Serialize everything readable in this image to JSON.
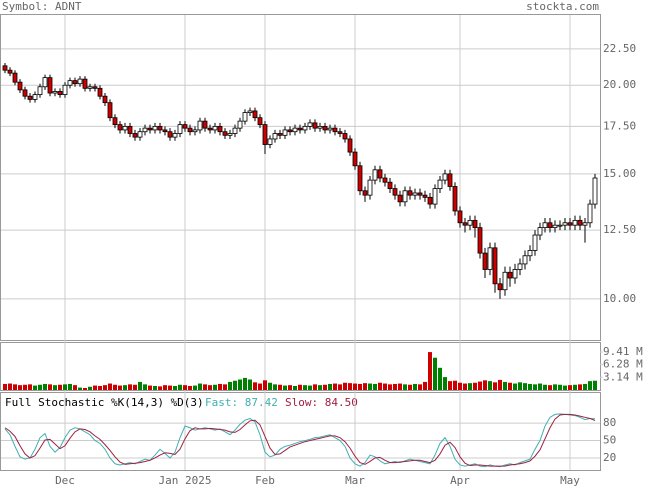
{
  "chart_data": {
    "type": "candlestick",
    "title": "Symbol: ADNT",
    "source": "stockta.com",
    "log_scale": true,
    "grid": true,
    "up_color": "#ffffff",
    "down_color": "#cc0000",
    "ylim": [
      8.75,
      25.2
    ],
    "yticks": [
      {
        "value": 22.5,
        "label": "22.50"
      },
      {
        "value": 20,
        "label": "20.00"
      },
      {
        "value": 17.5,
        "label": "17.50"
      },
      {
        "value": 15,
        "label": "15.00"
      },
      {
        "value": 12.5,
        "label": "12.50"
      },
      {
        "value": 10,
        "label": "10.00"
      }
    ],
    "xticks": [
      {
        "value": 12,
        "label": "Dec"
      },
      {
        "value": 36,
        "label": "Jan 2025"
      },
      {
        "value": 52,
        "label": "Feb"
      },
      {
        "value": 70,
        "label": "Mar"
      },
      {
        "value": 91,
        "label": "Apr"
      },
      {
        "value": 113,
        "label": "May"
      }
    ],
    "open": [
      21.3,
      21.0,
      20.8,
      20.2,
      19.7,
      19.3,
      19.1,
      19.4,
      19.9,
      20.5,
      19.5,
      19.6,
      19.4,
      20.0,
      20.3,
      20.1,
      20.4,
      19.8,
      19.9,
      19.8,
      19.3,
      18.9,
      18.0,
      17.6,
      17.3,
      17.5,
      17.1,
      16.9,
      17.2,
      17.4,
      17.3,
      17.5,
      17.3,
      17.2,
      16.9,
      17.1,
      17.6,
      17.4,
      17.2,
      17.3,
      17.8,
      17.4,
      17.3,
      17.5,
      17.2,
      17.0,
      17.1,
      17.4,
      17.8,
      18.3,
      18.4,
      18.0,
      17.6,
      16.5,
      16.8,
      17.1,
      17.0,
      17.3,
      17.2,
      17.4,
      17.3,
      17.5,
      17.7,
      17.4,
      17.5,
      17.3,
      17.4,
      17.2,
      17.1,
      16.8,
      16.1,
      15.4,
      14.2,
      14.0,
      14.7,
      15.2,
      14.8,
      14.6,
      14.3,
      14.0,
      13.7,
      14.2,
      14.0,
      14.1,
      14.0,
      13.9,
      13.6,
      14.3,
      14.7,
      15.0,
      14.4,
      13.3,
      12.8,
      12.7,
      12.9,
      12.6,
      11.6,
      11.0,
      11.8,
      10.5,
      10.3,
      10.9,
      10.7,
      11.0,
      11.2,
      11.5,
      11.7,
      12.3,
      12.6,
      12.8,
      12.6,
      12.7,
      12.7,
      12.8,
      12.7,
      12.9,
      12.7,
      12.8,
      13.6
    ],
    "high": [
      21.5,
      21.2,
      21.0,
      20.4,
      19.9,
      19.5,
      19.6,
      20.1,
      20.7,
      20.7,
      19.8,
      19.8,
      20.2,
      20.5,
      20.5,
      20.6,
      20.6,
      20.1,
      20.1,
      20.0,
      19.5,
      19.1,
      18.2,
      17.8,
      17.7,
      17.7,
      17.3,
      17.4,
      17.6,
      17.6,
      17.7,
      17.7,
      17.5,
      17.4,
      17.3,
      17.8,
      17.8,
      17.6,
      17.5,
      18.0,
      18.0,
      17.6,
      17.7,
      17.7,
      17.4,
      17.3,
      17.6,
      18.0,
      18.5,
      18.6,
      18.6,
      18.2,
      17.8,
      17.0,
      17.3,
      17.3,
      17.5,
      17.5,
      17.6,
      17.6,
      17.7,
      17.9,
      17.9,
      17.7,
      17.7,
      17.6,
      17.6,
      17.4,
      17.3,
      17.0,
      16.3,
      15.6,
      14.4,
      14.9,
      15.4,
      15.4,
      15.0,
      14.8,
      14.5,
      14.2,
      14.4,
      14.4,
      14.3,
      14.3,
      14.2,
      14.1,
      14.5,
      14.9,
      15.2,
      15.2,
      14.6,
      13.5,
      13.0,
      13.1,
      13.1,
      12.8,
      11.8,
      12.0,
      12.0,
      10.7,
      11.1,
      11.1,
      11.2,
      11.4,
      11.7,
      11.9,
      12.5,
      12.8,
      13.0,
      13.0,
      12.9,
      12.9,
      13.0,
      13.0,
      13.1,
      13.1,
      13.0,
      13.8,
      15.0
    ],
    "low": [
      20.8,
      20.6,
      20.0,
      19.5,
      19.1,
      18.9,
      18.9,
      19.2,
      19.7,
      19.3,
      19.3,
      19.2,
      19.2,
      19.8,
      19.9,
      19.9,
      19.6,
      19.6,
      19.6,
      19.1,
      18.7,
      17.8,
      17.4,
      17.1,
      17.1,
      16.9,
      16.7,
      16.7,
      17.0,
      17.1,
      17.1,
      17.1,
      17.0,
      16.7,
      16.7,
      16.9,
      17.2,
      17.0,
      17.0,
      17.1,
      17.2,
      17.1,
      17.1,
      17.0,
      16.8,
      16.8,
      16.9,
      17.2,
      17.6,
      18.1,
      17.8,
      17.4,
      16.0,
      16.3,
      16.6,
      16.8,
      16.8,
      17.0,
      17.0,
      17.1,
      17.1,
      17.3,
      17.2,
      17.2,
      17.1,
      17.1,
      17.0,
      16.9,
      16.6,
      15.9,
      15.2,
      14.0,
      13.7,
      13.8,
      14.5,
      14.6,
      14.4,
      14.1,
      13.8,
      13.5,
      13.5,
      13.8,
      13.8,
      13.8,
      13.7,
      13.4,
      13.4,
      14.1,
      14.5,
      14.2,
      13.1,
      12.6,
      12.4,
      12.5,
      12.2,
      11.4,
      10.7,
      10.8,
      10.2,
      10.0,
      10.1,
      10.4,
      10.5,
      10.8,
      11.0,
      11.3,
      11.5,
      12.1,
      12.4,
      12.4,
      12.4,
      12.5,
      12.5,
      12.5,
      12.5,
      12.5,
      12.0,
      12.6,
      13.4
    ],
    "close": [
      21.0,
      20.8,
      20.2,
      19.7,
      19.3,
      19.1,
      19.4,
      19.9,
      20.5,
      19.5,
      19.6,
      19.4,
      20.0,
      20.3,
      20.1,
      20.4,
      19.8,
      19.9,
      19.8,
      19.3,
      18.9,
      18.0,
      17.6,
      17.3,
      17.5,
      17.1,
      16.9,
      17.2,
      17.4,
      17.3,
      17.5,
      17.3,
      17.2,
      16.9,
      17.1,
      17.6,
      17.4,
      17.2,
      17.3,
      17.8,
      17.4,
      17.3,
      17.5,
      17.2,
      17.0,
      17.1,
      17.4,
      17.8,
      18.3,
      18.4,
      18.0,
      17.6,
      16.5,
      16.8,
      17.1,
      17.0,
      17.3,
      17.2,
      17.4,
      17.3,
      17.5,
      17.7,
      17.4,
      17.5,
      17.3,
      17.4,
      17.2,
      17.1,
      16.8,
      16.1,
      15.4,
      14.2,
      14.0,
      14.7,
      15.2,
      14.8,
      14.6,
      14.3,
      14.0,
      13.7,
      14.2,
      14.0,
      14.1,
      14.0,
      13.9,
      13.6,
      14.3,
      14.7,
      15.0,
      14.4,
      13.3,
      12.8,
      12.7,
      12.9,
      12.6,
      11.6,
      11.0,
      11.8,
      10.5,
      10.3,
      10.9,
      10.7,
      11.0,
      11.2,
      11.5,
      11.7,
      12.3,
      12.6,
      12.8,
      12.6,
      12.7,
      12.7,
      12.8,
      12.7,
      12.9,
      12.7,
      12.8,
      13.6,
      14.8
    ],
    "volume": {
      "up_color": "#008000",
      "down_color": "#cc0000",
      "ylim": [
        0,
        11.9
      ],
      "yticks": [
        {
          "value": 9.41,
          "label": "9.41 M"
        },
        {
          "value": 6.28,
          "label": "6.28 M"
        },
        {
          "value": 3.14,
          "label": "3.14 M"
        }
      ],
      "values": [
        1.5,
        1.6,
        1.4,
        1.2,
        1.3,
        1.4,
        1.1,
        1.3,
        1.5,
        1.4,
        1.2,
        1.3,
        1.4,
        1.5,
        1.2,
        0.6,
        0.5,
        0.8,
        1.1,
        1.0,
        1.2,
        1.6,
        1.3,
        1.1,
        1.2,
        1.4,
        1.3,
        2.0,
        1.4,
        1.1,
        1.0,
        0.9,
        1.2,
        1.1,
        1.0,
        1.3,
        1.2,
        1.0,
        1.1,
        1.6,
        1.4,
        1.2,
        1.3,
        1.5,
        1.4,
        2.0,
        2.3,
        2.6,
        3.0,
        2.6,
        1.9,
        1.6,
        2.4,
        1.8,
        1.4,
        1.3,
        1.1,
        1.2,
        1.0,
        1.3,
        1.2,
        1.1,
        1.4,
        1.2,
        1.3,
        1.5,
        1.6,
        1.4,
        1.8,
        1.7,
        1.6,
        1.5,
        1.7,
        1.6,
        1.5,
        1.8,
        1.6,
        1.4,
        1.5,
        1.6,
        1.4,
        1.3,
        1.5,
        1.4,
        2.0,
        9.4,
        8.0,
        5.5,
        3.2,
        2.2,
        2.3,
        1.8,
        1.6,
        1.7,
        1.8,
        2.1,
        2.4,
        2.2,
        1.9,
        2.5,
        2.0,
        1.8,
        1.6,
        1.9,
        1.7,
        1.5,
        1.4,
        1.6,
        1.3,
        1.2,
        1.4,
        1.3,
        1.1,
        1.2,
        1.3,
        1.4,
        1.5,
        2.2,
        2.3
      ]
    },
    "stochastic": {
      "label": "Full Stochastic %K(14,3) %D(3)",
      "fast_text": "Fast: 87.42",
      "slow_text": "Slow: 84.50",
      "ylim": [
        0,
        100
      ],
      "yticks": [
        80,
        50,
        20
      ],
      "series": [
        {
          "name": "%K",
          "color": "#40b0b0",
          "values": [
            70,
            60,
            40,
            22,
            18,
            20,
            35,
            55,
            62,
            40,
            30,
            38,
            55,
            68,
            72,
            70,
            65,
            60,
            50,
            45,
            35,
            20,
            10,
            8,
            10,
            12,
            10,
            14,
            18,
            16,
            25,
            35,
            28,
            20,
            30,
            55,
            75,
            72,
            68,
            70,
            72,
            70,
            68,
            70,
            65,
            60,
            68,
            78,
            85,
            88,
            82,
            60,
            30,
            22,
            25,
            35,
            40,
            42,
            45,
            48,
            50,
            52,
            55,
            56,
            58,
            60,
            55,
            50,
            40,
            20,
            10,
            6,
            12,
            25,
            22,
            15,
            10,
            12,
            14,
            12,
            15,
            18,
            16,
            14,
            12,
            10,
            25,
            45,
            55,
            40,
            18,
            8,
            6,
            8,
            10,
            6,
            5,
            8,
            6,
            5,
            8,
            10,
            8,
            12,
            15,
            18,
            35,
            50,
            75,
            90,
            95,
            96,
            95,
            94,
            93,
            90,
            86,
            88,
            87.42
          ]
        },
        {
          "name": "%D",
          "color": "#a02040",
          "values": [
            72,
            66,
            57,
            41,
            27,
            20,
            24,
            37,
            51,
            52,
            44,
            36,
            41,
            54,
            65,
            70,
            69,
            65,
            58,
            52,
            43,
            33,
            22,
            13,
            9,
            10,
            11,
            12,
            14,
            16,
            20,
            25,
            29,
            28,
            26,
            35,
            53,
            67,
            72,
            70,
            70,
            71,
            70,
            69,
            68,
            65,
            64,
            69,
            77,
            84,
            85,
            77,
            57,
            37,
            26,
            27,
            33,
            39,
            42,
            45,
            48,
            50,
            52,
            54,
            56,
            58,
            58,
            55,
            48,
            37,
            23,
            12,
            9,
            14,
            20,
            21,
            16,
            12,
            12,
            13,
            14,
            15,
            16,
            16,
            14,
            12,
            16,
            27,
            42,
            47,
            38,
            22,
            11,
            7,
            8,
            8,
            7,
            6,
            6,
            6,
            6,
            8,
            9,
            10,
            12,
            15,
            23,
            34,
            53,
            72,
            87,
            94,
            95,
            95,
            94,
            92,
            90,
            88,
            84.5
          ]
        }
      ]
    }
  }
}
